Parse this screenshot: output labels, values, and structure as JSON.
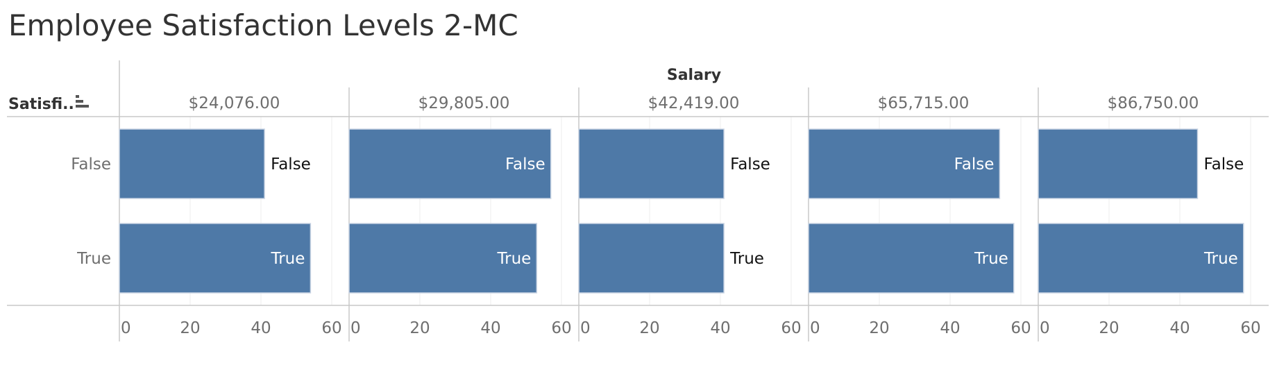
{
  "title": "Employee Satisfaction Levels 2-MC",
  "colors": {
    "bar": "#4e79a7",
    "bar_border": "#c9d4e3",
    "axis": "#c8c8c8",
    "grid": "#ececec",
    "text": "#333333",
    "tick_text": "#6e6e6e"
  },
  "chart_data": {
    "type": "bar",
    "orientation": "horizontal",
    "title": "Employee Satisfaction Levels 2-MC",
    "column_header": "Salary",
    "row_header": "Satisfi..",
    "row_header_icon": "sort-descending-icon",
    "panels": [
      {
        "name": "$24,076.00",
        "values": [
          {
            "category": "False",
            "value": 41
          },
          {
            "category": "True",
            "value": 54
          }
        ]
      },
      {
        "name": "$29,805.00",
        "values": [
          {
            "category": "False",
            "value": 57
          },
          {
            "category": "True",
            "value": 53
          }
        ]
      },
      {
        "name": "$42,419.00",
        "values": [
          {
            "category": "False",
            "value": 41
          },
          {
            "category": "True",
            "value": 41
          }
        ]
      },
      {
        "name": "$65,715.00",
        "values": [
          {
            "category": "False",
            "value": 54
          },
          {
            "category": "True",
            "value": 58
          }
        ]
      },
      {
        "name": "$86,750.00",
        "values": [
          {
            "category": "False",
            "value": 45
          },
          {
            "category": "True",
            "value": 58
          }
        ]
      }
    ],
    "categories": [
      "False",
      "True"
    ],
    "xlim": [
      0,
      65
    ],
    "xticks": [
      0,
      20,
      40,
      60
    ],
    "grid": true
  }
}
